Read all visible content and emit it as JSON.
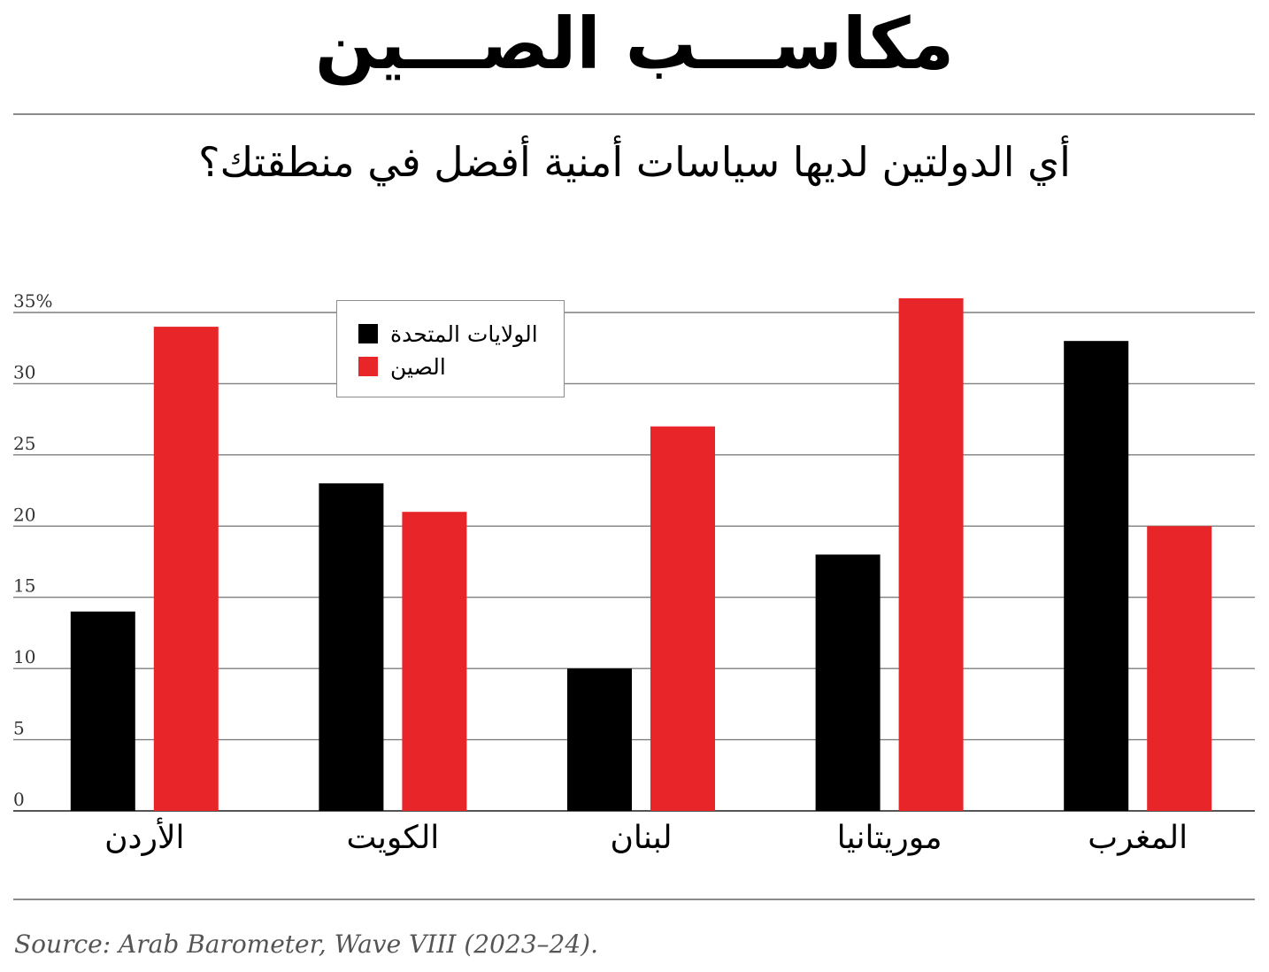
{
  "title": "مكاســـب الصـــين",
  "subtitle": "أي الدولتين لديها سياسات أمنية أفضل في منطقتك؟",
  "source": "Source: Arab Barometer, Wave VIII (2023–24).",
  "colors": {
    "us": "#000000",
    "china": "#e8262a",
    "grid": "#7f7f7f"
  },
  "chart_data": {
    "type": "bar",
    "title": "أي الدولتين لديها سياسات أمنية أفضل في منطقتك؟",
    "categories": [
      "الأردن",
      "الكويت",
      "لبنان",
      "موريتانيا",
      "المغرب"
    ],
    "series": [
      {
        "name": "الولايات المتحدة",
        "color": "#000000",
        "values": [
          14,
          23,
          10,
          18,
          33
        ]
      },
      {
        "name": "الصين",
        "color": "#e8262a",
        "values": [
          34,
          21,
          27,
          36,
          20
        ]
      }
    ],
    "ylim": [
      0,
      35
    ],
    "yticks": [
      "0",
      "5",
      "10",
      "15",
      "20",
      "25",
      "30",
      "35%"
    ],
    "grid": true,
    "legend_position": "top-left"
  }
}
